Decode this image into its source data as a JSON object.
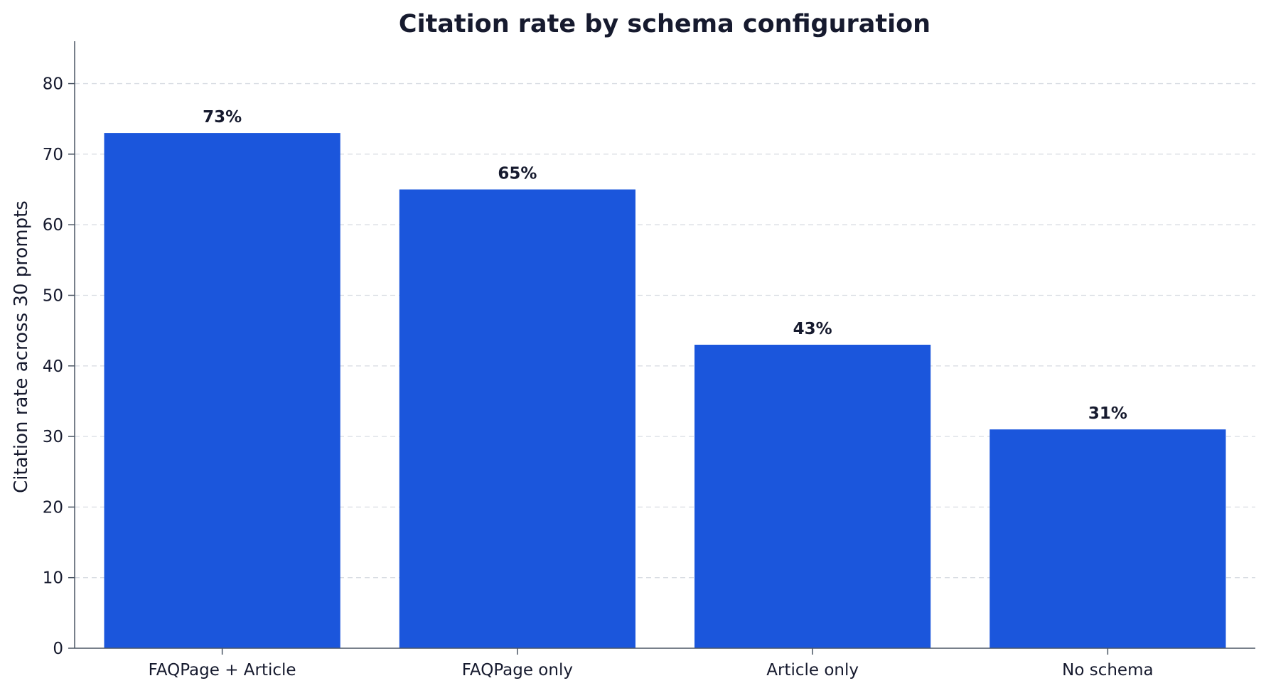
{
  "chart_data": {
    "type": "bar",
    "title": "Citation rate by schema configuration",
    "xlabel": "",
    "ylabel": "Citation rate across 30 prompts",
    "categories": [
      "FAQPage + Article",
      "FAQPage only",
      "Article only",
      "No schema"
    ],
    "values": [
      73,
      65,
      43,
      31
    ],
    "value_labels": [
      "73%",
      "65%",
      "43%",
      "31%"
    ],
    "ylim": [
      0,
      86
    ],
    "yticks": [
      0,
      10,
      20,
      30,
      40,
      50,
      60,
      70,
      80
    ],
    "grid": "horizontal-dashed",
    "legend": "none"
  },
  "colors": {
    "bar": "#1b56dc",
    "text": "#161a2e",
    "axis": "#4a5563",
    "grid": "#d9dde3"
  }
}
